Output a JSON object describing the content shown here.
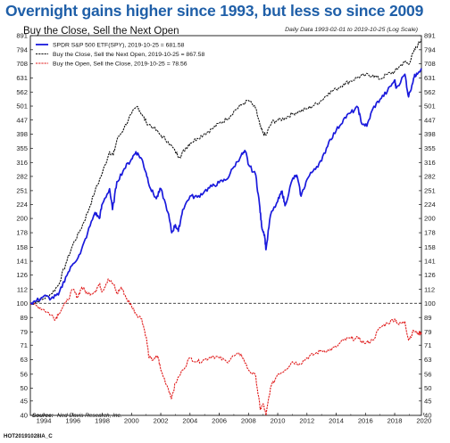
{
  "headline": "Overnight gains higher since 1993, but less so since 2009",
  "footer_code": "HOT20191028IA_C",
  "chart_data": {
    "type": "line",
    "title": "Buy the Close, Sell the Next Open",
    "note": "Daily Data 1993-02-01 to 2019-10-25 (Log Scale)",
    "y_scale": "log",
    "ylim": [
      40,
      891
    ],
    "xlim": [
      1993.08,
      2019.83
    ],
    "y_ticks": [
      891,
      794,
      708,
      631,
      562,
      501,
      447,
      398,
      355,
      316,
      282,
      251,
      224,
      200,
      178,
      158,
      141,
      126,
      112,
      100,
      89,
      79,
      71,
      63,
      56,
      50,
      45,
      40
    ],
    "x_ticks": [
      1994,
      1996,
      1998,
      2000,
      2002,
      2004,
      2006,
      2008,
      2010,
      2012,
      2014,
      2016,
      2018,
      2020
    ],
    "reference_line": 100,
    "series": [
      {
        "name": "SPDR S&P 500 ETF(SPY), 2019-10-25 = 681.58",
        "color": "#1a1adc",
        "style": "solid",
        "points": [
          [
            1993.08,
            100
          ],
          [
            1993.5,
            102
          ],
          [
            1994.0,
            106
          ],
          [
            1994.5,
            104
          ],
          [
            1995.0,
            107
          ],
          [
            1995.5,
            124
          ],
          [
            1996.0,
            138
          ],
          [
            1996.5,
            150
          ],
          [
            1997.0,
            178
          ],
          [
            1997.5,
            210
          ],
          [
            1997.8,
            200
          ],
          [
            1998.0,
            225
          ],
          [
            1998.5,
            255
          ],
          [
            1998.7,
            215
          ],
          [
            1999.0,
            270
          ],
          [
            1999.5,
            300
          ],
          [
            2000.0,
            325
          ],
          [
            2000.3,
            345
          ],
          [
            2000.7,
            325
          ],
          [
            2001.0,
            290
          ],
          [
            2001.3,
            255
          ],
          [
            2001.7,
            235
          ],
          [
            2002.0,
            255
          ],
          [
            2002.5,
            210
          ],
          [
            2002.75,
            178
          ],
          [
            2003.0,
            190
          ],
          [
            2003.2,
            180
          ],
          [
            2003.5,
            215
          ],
          [
            2004.0,
            240
          ],
          [
            2004.5,
            238
          ],
          [
            2005.0,
            250
          ],
          [
            2005.5,
            260
          ],
          [
            2006.0,
            268
          ],
          [
            2006.5,
            275
          ],
          [
            2007.0,
            305
          ],
          [
            2007.5,
            335
          ],
          [
            2007.8,
            345
          ],
          [
            2008.0,
            310
          ],
          [
            2008.5,
            285
          ],
          [
            2008.75,
            225
          ],
          [
            2008.9,
            188
          ],
          [
            2009.1,
            175
          ],
          [
            2009.2,
            155
          ],
          [
            2009.5,
            205
          ],
          [
            2010.0,
            230
          ],
          [
            2010.3,
            250
          ],
          [
            2010.5,
            222
          ],
          [
            2011.0,
            275
          ],
          [
            2011.3,
            285
          ],
          [
            2011.6,
            240
          ],
          [
            2012.0,
            275
          ],
          [
            2012.5,
            300
          ],
          [
            2013.0,
            320
          ],
          [
            2013.5,
            375
          ],
          [
            2014.0,
            410
          ],
          [
            2014.5,
            450
          ],
          [
            2015.0,
            475
          ],
          [
            2015.5,
            495
          ],
          [
            2015.7,
            440
          ],
          [
            2016.1,
            425
          ],
          [
            2016.5,
            490
          ],
          [
            2017.0,
            530
          ],
          [
            2017.5,
            565
          ],
          [
            2018.0,
            620
          ],
          [
            2018.1,
            580
          ],
          [
            2018.7,
            650
          ],
          [
            2018.95,
            540
          ],
          [
            2019.3,
            630
          ],
          [
            2019.5,
            655
          ],
          [
            2019.83,
            682
          ]
        ]
      },
      {
        "name": "Buy the Close, Sell the Next Open, 2019-10-25 = 867.58",
        "color": "#111111",
        "style": "dashed",
        "points": [
          [
            1993.08,
            100
          ],
          [
            1993.5,
            101
          ],
          [
            1994.0,
            104
          ],
          [
            1994.5,
            108
          ],
          [
            1995.0,
            116
          ],
          [
            1995.5,
            138
          ],
          [
            1996.0,
            162
          ],
          [
            1996.5,
            182
          ],
          [
            1997.0,
            210
          ],
          [
            1997.5,
            250
          ],
          [
            1998.0,
            290
          ],
          [
            1998.5,
            345
          ],
          [
            1998.75,
            335
          ],
          [
            1999.0,
            380
          ],
          [
            1999.5,
            420
          ],
          [
            2000.0,
            470
          ],
          [
            2000.4,
            500
          ],
          [
            2000.7,
            470
          ],
          [
            2001.0,
            440
          ],
          [
            2001.5,
            420
          ],
          [
            2002.0,
            395
          ],
          [
            2002.5,
            375
          ],
          [
            2003.0,
            345
          ],
          [
            2003.3,
            330
          ],
          [
            2003.7,
            355
          ],
          [
            2004.0,
            370
          ],
          [
            2004.5,
            385
          ],
          [
            2005.0,
            400
          ],
          [
            2005.5,
            415
          ],
          [
            2006.0,
            435
          ],
          [
            2006.5,
            450
          ],
          [
            2007.0,
            480
          ],
          [
            2007.5,
            505
          ],
          [
            2008.0,
            525
          ],
          [
            2008.5,
            490
          ],
          [
            2008.8,
            425
          ],
          [
            2009.0,
            400
          ],
          [
            2009.2,
            395
          ],
          [
            2009.6,
            440
          ],
          [
            2010.0,
            445
          ],
          [
            2010.5,
            455
          ],
          [
            2011.0,
            470
          ],
          [
            2011.5,
            480
          ],
          [
            2012.0,
            490
          ],
          [
            2012.5,
            505
          ],
          [
            2013.0,
            525
          ],
          [
            2013.5,
            560
          ],
          [
            2014.0,
            575
          ],
          [
            2014.5,
            600
          ],
          [
            2015.0,
            615
          ],
          [
            2015.5,
            635
          ],
          [
            2016.0,
            645
          ],
          [
            2016.5,
            645
          ],
          [
            2017.0,
            625
          ],
          [
            2017.5,
            650
          ],
          [
            2018.0,
            665
          ],
          [
            2018.3,
            690
          ],
          [
            2018.7,
            720
          ],
          [
            2018.95,
            705
          ],
          [
            2019.3,
            780
          ],
          [
            2019.6,
            830
          ],
          [
            2019.83,
            868
          ]
        ]
      },
      {
        "name": "Buy the Open, Sell the Close, 2019-10-25 = 78.56",
        "color": "#e01818",
        "style": "dashed",
        "points": [
          [
            1993.08,
            100
          ],
          [
            1993.5,
            98
          ],
          [
            1994.0,
            95
          ],
          [
            1994.5,
            91
          ],
          [
            1994.8,
            88
          ],
          [
            1995.0,
            92
          ],
          [
            1995.5,
            100
          ],
          [
            1996.0,
            112
          ],
          [
            1996.3,
            105
          ],
          [
            1996.6,
            114
          ],
          [
            1997.0,
            108
          ],
          [
            1997.5,
            110
          ],
          [
            1997.8,
            117
          ],
          [
            1998.0,
            110
          ],
          [
            1998.4,
            122
          ],
          [
            1998.8,
            116
          ],
          [
            1999.0,
            108
          ],
          [
            1999.3,
            114
          ],
          [
            1999.7,
            103
          ],
          [
            2000.0,
            98
          ],
          [
            2000.3,
            92
          ],
          [
            2000.7,
            88
          ],
          [
            2001.0,
            76
          ],
          [
            2001.2,
            64
          ],
          [
            2001.5,
            63
          ],
          [
            2001.8,
            65
          ],
          [
            2002.0,
            58
          ],
          [
            2002.5,
            50
          ],
          [
            2002.75,
            46
          ],
          [
            2003.0,
            52
          ],
          [
            2003.5,
            58
          ],
          [
            2004.0,
            64
          ],
          [
            2004.5,
            62
          ],
          [
            2005.0,
            63
          ],
          [
            2005.5,
            65
          ],
          [
            2006.0,
            64
          ],
          [
            2006.5,
            62
          ],
          [
            2007.0,
            65
          ],
          [
            2007.5,
            66
          ],
          [
            2008.0,
            58
          ],
          [
            2008.5,
            55
          ],
          [
            2008.8,
            42
          ],
          [
            2009.0,
            44
          ],
          [
            2009.2,
            40
          ],
          [
            2009.5,
            50
          ],
          [
            2010.0,
            56
          ],
          [
            2010.5,
            58
          ],
          [
            2011.0,
            62
          ],
          [
            2011.5,
            61
          ],
          [
            2012.0,
            64
          ],
          [
            2012.5,
            66
          ],
          [
            2013.0,
            68
          ],
          [
            2013.5,
            68
          ],
          [
            2014.0,
            70
          ],
          [
            2014.5,
            74
          ],
          [
            2015.0,
            75
          ],
          [
            2015.5,
            75
          ],
          [
            2016.0,
            72
          ],
          [
            2016.5,
            74
          ],
          [
            2017.0,
            82
          ],
          [
            2017.5,
            85
          ],
          [
            2018.0,
            88
          ],
          [
            2018.3,
            84
          ],
          [
            2018.7,
            86
          ],
          [
            2018.95,
            74
          ],
          [
            2019.3,
            80
          ],
          [
            2019.6,
            78
          ],
          [
            2019.83,
            78.56
          ]
        ]
      }
    ]
  },
  "source": {
    "label": "Source:",
    "text": "Ned Davis Research, Inc."
  }
}
